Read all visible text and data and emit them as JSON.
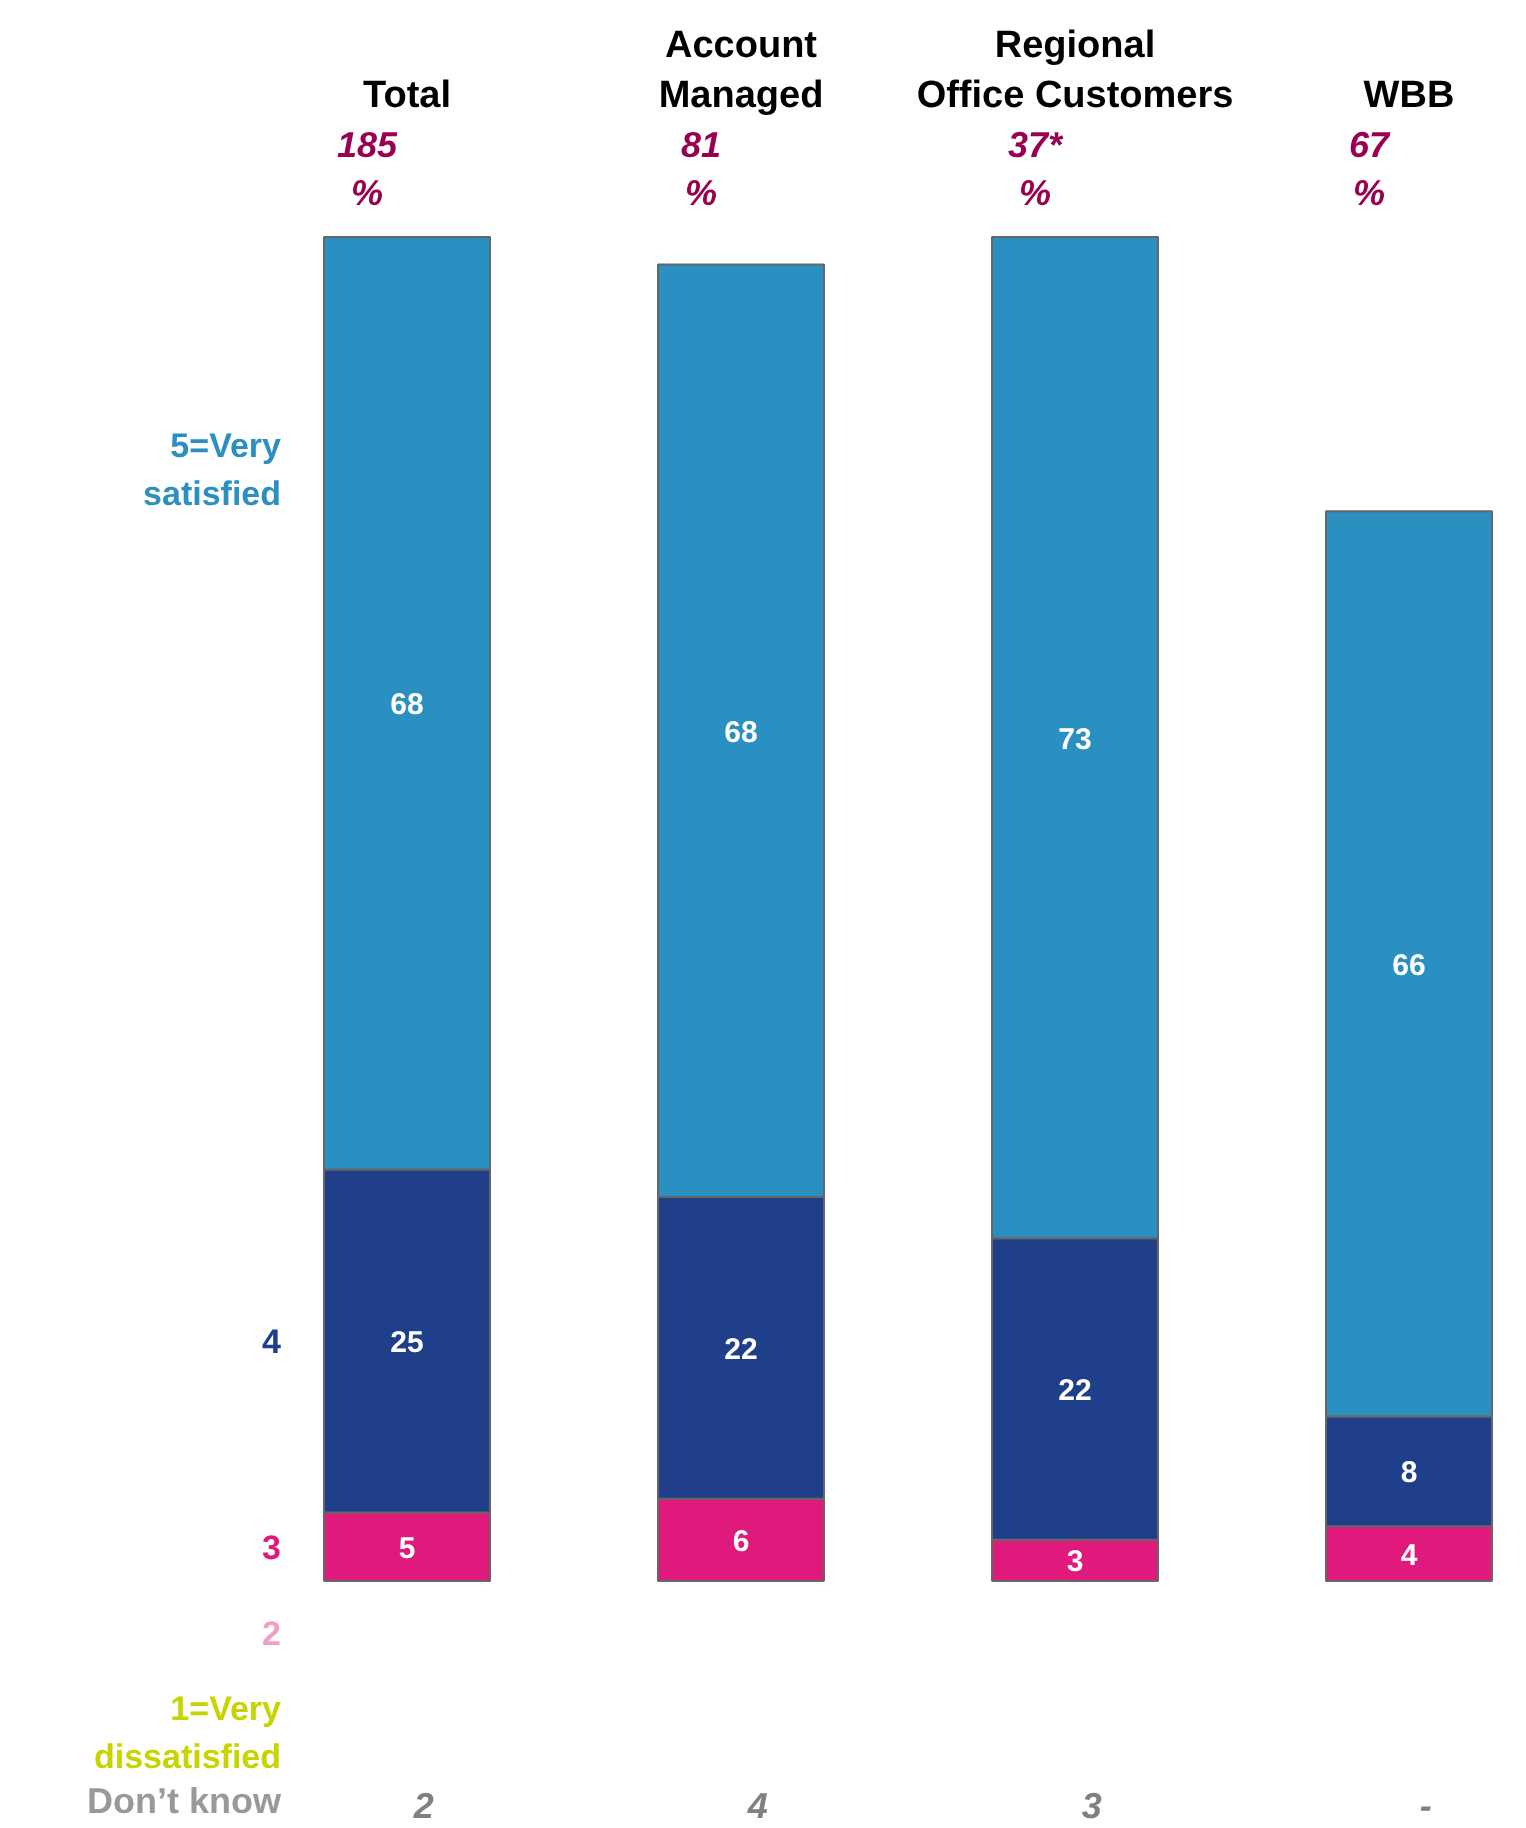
{
  "chart_data": {
    "type": "bar",
    "stacked": true,
    "data_labels": true,
    "grid": false,
    "categories": [
      "Total",
      "Account\nManaged",
      "Regional\nOffice Customers",
      "WBB"
    ],
    "series": [
      {
        "name": "1=Very\ndissatisfied",
        "color": "#c8d400",
        "values": [
          null,
          null,
          null,
          null
        ]
      },
      {
        "name": "2",
        "color": "#f29fc5",
        "values": [
          null,
          null,
          null,
          null
        ]
      },
      {
        "name": "3",
        "color": "#e0197d",
        "values": [
          5,
          6,
          3,
          4
        ]
      },
      {
        "name": "4",
        "color": "#1f3f8a",
        "values": [
          25,
          22,
          22,
          8
        ]
      },
      {
        "name": "5=Very\nsatisfied",
        "color": "#2a8fc1",
        "values": [
          68,
          68,
          73,
          66
        ]
      }
    ],
    "annotations": [
      "185\n%",
      "81\n%",
      "37*\n%",
      "67\n%",
      "Don’t know",
      "2",
      "4",
      "3",
      "-"
    ]
  }
}
